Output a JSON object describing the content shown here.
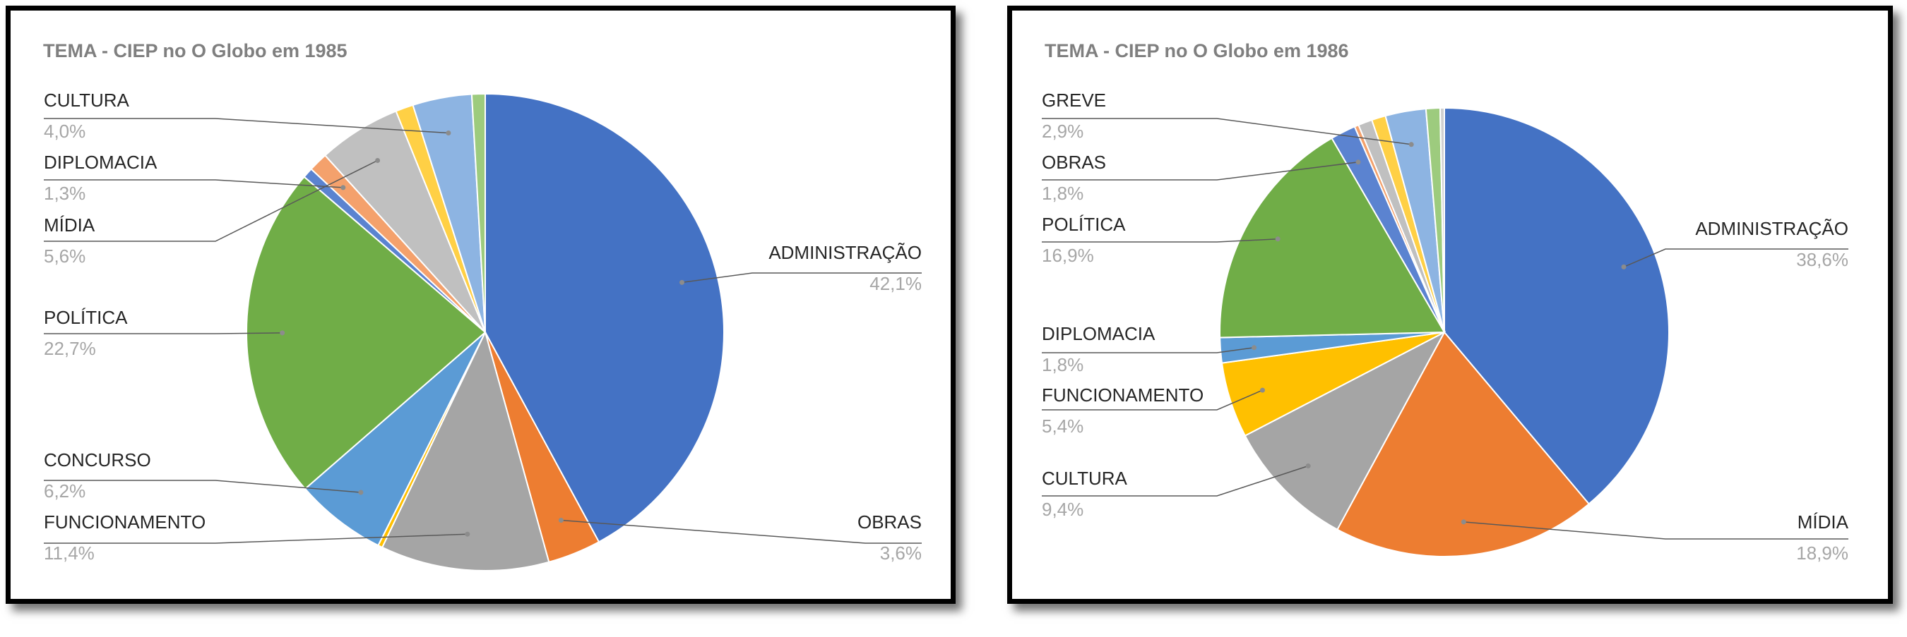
{
  "chart_data": [
    {
      "type": "pie",
      "title": "TEMA - CIEP no O Globo em 1985",
      "slices": [
        {
          "label": "ADMINISTRAÇÃO",
          "value": 42.1,
          "value_label": "42,1%",
          "color": "#4472C4",
          "shown_label": true
        },
        {
          "label": "OBRAS",
          "value": 3.6,
          "value_label": "3,6%",
          "color": "#ED7D31",
          "shown_label": true
        },
        {
          "label": "FUNCIONAMENTO",
          "value": 11.4,
          "value_label": "11,4%",
          "color": "#A5A5A5",
          "shown_label": true
        },
        {
          "label": "",
          "value": 0.3,
          "color": "#FFC000",
          "shown_label": false
        },
        {
          "label": "CONCURSO",
          "value": 6.2,
          "value_label": "6,2%",
          "color": "#5B9BD5",
          "shown_label": true
        },
        {
          "label": "POLÍTICA",
          "value": 22.7,
          "value_label": "22,7%",
          "color": "#70AD47",
          "shown_label": true
        },
        {
          "label": "",
          "value": 0.7,
          "color": "#5B83D0",
          "shown_label": false
        },
        {
          "label": "DIPLOMACIA",
          "value": 1.3,
          "value_label": "1,3%",
          "color": "#F4A16C",
          "shown_label": true
        },
        {
          "label": "MÍDIA",
          "value": 5.6,
          "value_label": "5,6%",
          "color": "#C0C0C0",
          "shown_label": true
        },
        {
          "label": "",
          "value": 1.2,
          "color": "#FFD045",
          "shown_label": false
        },
        {
          "label": "CULTURA",
          "value": 4.0,
          "value_label": "4,0%",
          "color": "#8DB4E2",
          "shown_label": true
        },
        {
          "label": "",
          "value": 0.9,
          "color": "#9DCB7E",
          "shown_label": false
        }
      ]
    },
    {
      "type": "pie",
      "title": "TEMA - CIEP no O Globo em 1986",
      "slices": [
        {
          "label": "ADMINISTRAÇÃO",
          "value": 38.6,
          "value_label": "38,6%",
          "color": "#4472C4",
          "shown_label": true
        },
        {
          "label": "MÍDIA",
          "value": 18.9,
          "value_label": "18,9%",
          "color": "#ED7D31",
          "shown_label": true
        },
        {
          "label": "CULTURA",
          "value": 9.4,
          "value_label": "9,4%",
          "color": "#A5A5A5",
          "shown_label": true
        },
        {
          "label": "FUNCIONAMENTO",
          "value": 5.4,
          "value_label": "5,4%",
          "color": "#FFC000",
          "shown_label": true
        },
        {
          "label": "DIPLOMACIA",
          "value": 1.8,
          "value_label": "1,8%",
          "color": "#5B9BD5",
          "shown_label": true
        },
        {
          "label": "POLÍTICA",
          "value": 16.9,
          "value_label": "16,9%",
          "color": "#70AD47",
          "shown_label": true
        },
        {
          "label": "OBRAS",
          "value": 1.8,
          "value_label": "1,8%",
          "color": "#5B83D0",
          "shown_label": true
        },
        {
          "label": "",
          "value": 0.3,
          "color": "#F4A16C",
          "shown_label": false
        },
        {
          "label": "",
          "value": 1.0,
          "color": "#C0C0C0",
          "shown_label": false
        },
        {
          "label": "",
          "value": 1.0,
          "color": "#FFD045",
          "shown_label": false
        },
        {
          "label": "GREVE",
          "value": 2.9,
          "value_label": "2,9%",
          "color": "#8DB4E2",
          "shown_label": true
        },
        {
          "label": "",
          "value": 1.0,
          "color": "#9DCB7E",
          "shown_label": false
        },
        {
          "label": "",
          "value": 0.3,
          "color": "#D0D0D0",
          "shown_label": false
        }
      ]
    }
  ]
}
